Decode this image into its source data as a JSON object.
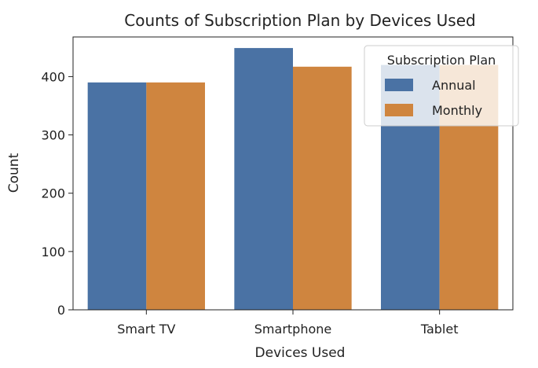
{
  "chart_data": {
    "type": "bar",
    "title": "Counts of Subscription Plan by Devices Used",
    "xlabel": "Devices Used",
    "ylabel": "Count",
    "categories": [
      "Smart TV",
      "Smartphone",
      "Tablet"
    ],
    "series": [
      {
        "name": "Annual",
        "color": "#4a72a4",
        "values": [
          390,
          449,
          420
        ]
      },
      {
        "name": "Monthly",
        "color": "#cf853f",
        "values": [
          390,
          417,
          420
        ]
      }
    ],
    "ylim": [
      0,
      468
    ],
    "yticks": [
      0,
      100,
      200,
      300,
      400
    ],
    "grid": false,
    "legend": {
      "title": "Subscription Plan",
      "placement": "top-right"
    }
  }
}
